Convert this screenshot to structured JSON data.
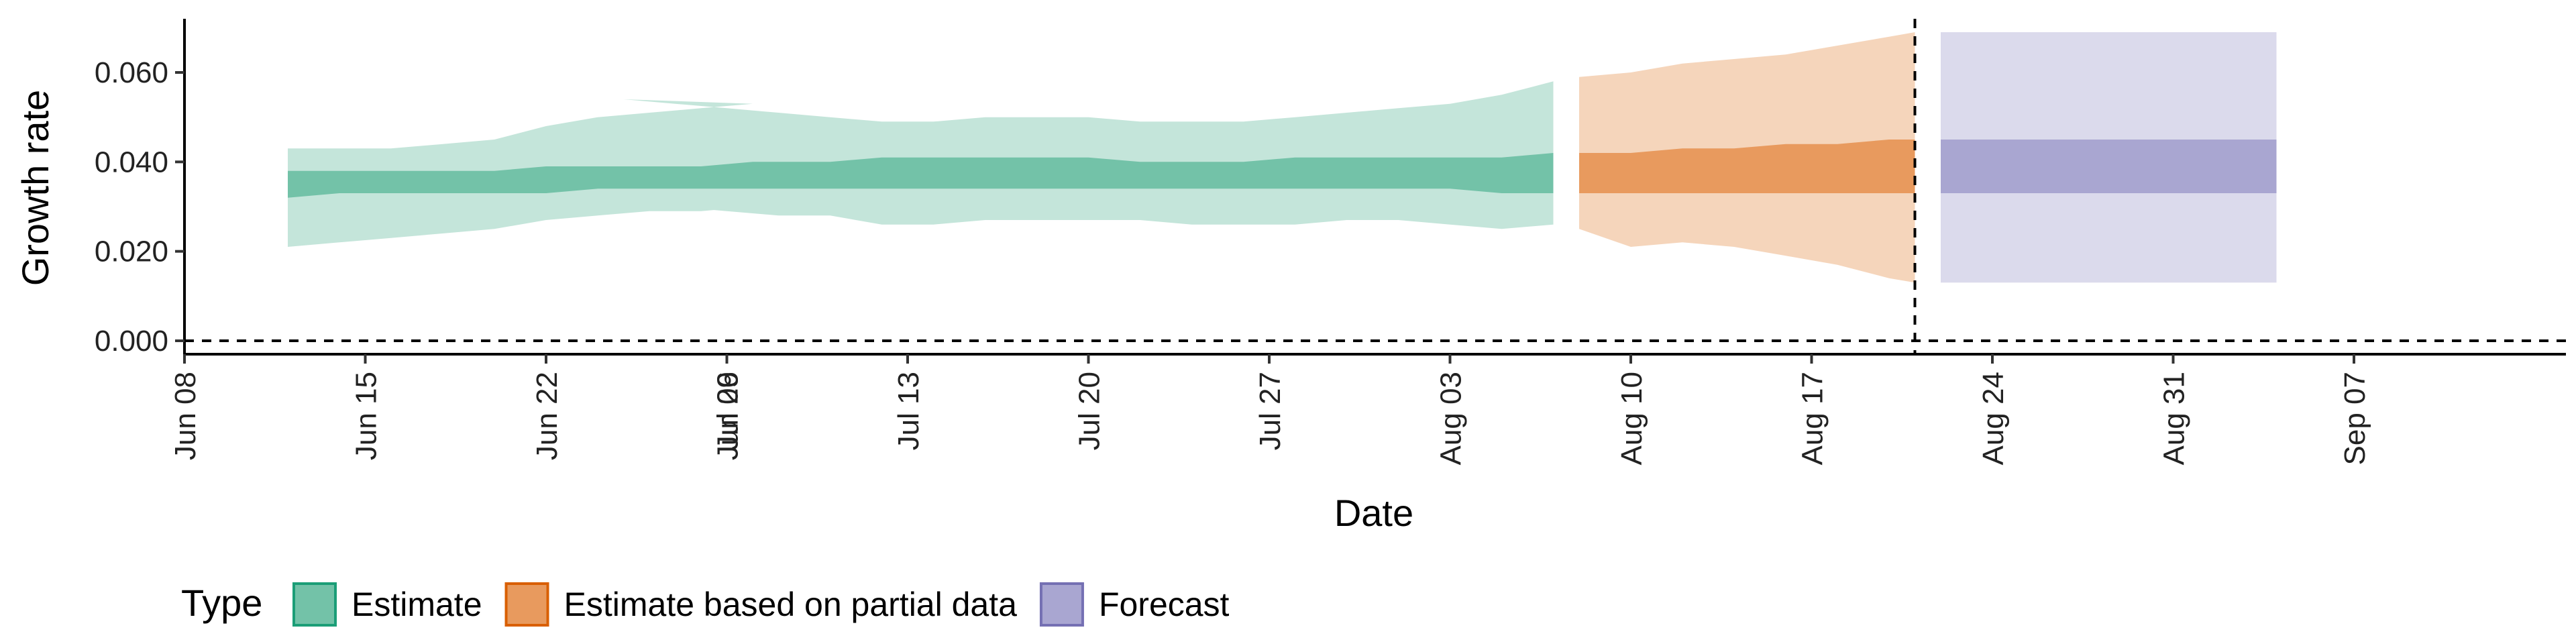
{
  "chart_data": {
    "type": "area",
    "xlabel": "Date",
    "ylabel": "Growth rate",
    "ylim": [
      -0.003,
      0.072
    ],
    "y_ticks": [
      "0.000",
      "0.020",
      "0.040",
      "0.060"
    ],
    "y_tick_values": [
      0.0,
      0.02,
      0.04,
      0.06
    ],
    "x_ticks": [
      "Jun 08",
      "Jun 15",
      "Jun 22",
      "Jun 29",
      "Jul 06",
      "Jul 13",
      "Jul 20",
      "Jul 27",
      "Aug 03",
      "Aug 10",
      "Aug 17",
      "Aug 24",
      "Aug 31",
      "Sep 07"
    ],
    "reference_lines": {
      "horizontal_y": 0.0,
      "vertical_date": "Aug 21"
    },
    "legend": {
      "title": "Type",
      "position": "bottom",
      "items": [
        {
          "label": "Estimate",
          "fill": "#73c2a8",
          "stroke": "#1b9e77"
        },
        {
          "label": "Estimate based on partial data",
          "fill": "#e89a5e",
          "stroke": "#d95f02"
        },
        {
          "label": "Forecast",
          "fill": "#a9a6d1",
          "stroke": "#7570b3"
        }
      ]
    },
    "series": [
      {
        "name": "Estimate",
        "dates": [
          "Jun 12",
          "Jun 14",
          "Jun 16",
          "Jun 18",
          "Jun 20",
          "Jun 22",
          "Jun 24",
          "Jun 26",
          "Jun 28",
          "Jun 30",
          "Jul 02",
          "Jul 04",
          "Jul 06",
          "Jul 08",
          "Jul 10",
          "Jul 12",
          "Jul 14",
          "Jul 16",
          "Jul 18",
          "Jul 20",
          "Jul 22",
          "Jul 24",
          "Jul 26",
          "Jul 28",
          "Jul 30",
          "Aug 01",
          "Aug 03",
          "Aug 05",
          "Aug 07"
        ],
        "outer_lower": [
          0.021,
          0.022,
          0.023,
          0.024,
          0.025,
          0.027,
          0.028,
          0.029,
          0.029,
          0.03,
          0.03,
          0.03,
          0.029,
          0.028,
          0.028,
          0.026,
          0.026,
          0.027,
          0.027,
          0.027,
          0.027,
          0.026,
          0.026,
          0.026,
          0.027,
          0.027,
          0.026,
          0.025,
          0.026
        ],
        "inner_lower": [
          0.032,
          0.033,
          0.033,
          0.033,
          0.033,
          0.033,
          0.034,
          0.034,
          0.034,
          0.034,
          0.034,
          0.034,
          0.034,
          0.034,
          0.034,
          0.034,
          0.034,
          0.034,
          0.034,
          0.034,
          0.034,
          0.034,
          0.034,
          0.034,
          0.034,
          0.034,
          0.034,
          0.033,
          0.033
        ],
        "inner_upper": [
          0.038,
          0.038,
          0.038,
          0.038,
          0.038,
          0.039,
          0.039,
          0.039,
          0.039,
          0.04,
          0.04,
          0.04,
          0.04,
          0.04,
          0.04,
          0.041,
          0.041,
          0.041,
          0.041,
          0.041,
          0.04,
          0.04,
          0.04,
          0.041,
          0.041,
          0.041,
          0.041,
          0.041,
          0.042
        ],
        "outer_upper": [
          0.043,
          0.043,
          0.043,
          0.044,
          0.045,
          0.048,
          0.05,
          0.051,
          0.052,
          0.053,
          0.054,
          0.053,
          0.052,
          0.051,
          0.05,
          0.049,
          0.049,
          0.05,
          0.05,
          0.05,
          0.049,
          0.049,
          0.049,
          0.05,
          0.051,
          0.052,
          0.053,
          0.055,
          0.058
        ]
      },
      {
        "name": "Estimate based on partial data",
        "dates": [
          "Aug 08",
          "Aug 10",
          "Aug 12",
          "Aug 14",
          "Aug 16",
          "Aug 18",
          "Aug 20",
          "Aug 21"
        ],
        "outer_lower": [
          0.025,
          0.021,
          0.022,
          0.021,
          0.019,
          0.017,
          0.014,
          0.013
        ],
        "inner_lower": [
          0.033,
          0.033,
          0.033,
          0.033,
          0.033,
          0.033,
          0.033,
          0.033
        ],
        "inner_upper": [
          0.042,
          0.042,
          0.043,
          0.043,
          0.044,
          0.044,
          0.045,
          0.045
        ],
        "outer_upper": [
          0.059,
          0.06,
          0.062,
          0.063,
          0.064,
          0.066,
          0.068,
          0.069
        ]
      },
      {
        "name": "Forecast",
        "dates": [
          "Aug 22",
          "Sep 04"
        ],
        "outer_lower": [
          0.013,
          0.013
        ],
        "inner_lower": [
          0.033,
          0.033
        ],
        "inner_upper": [
          0.045,
          0.045
        ],
        "outer_upper": [
          0.069,
          0.069
        ]
      }
    ]
  }
}
